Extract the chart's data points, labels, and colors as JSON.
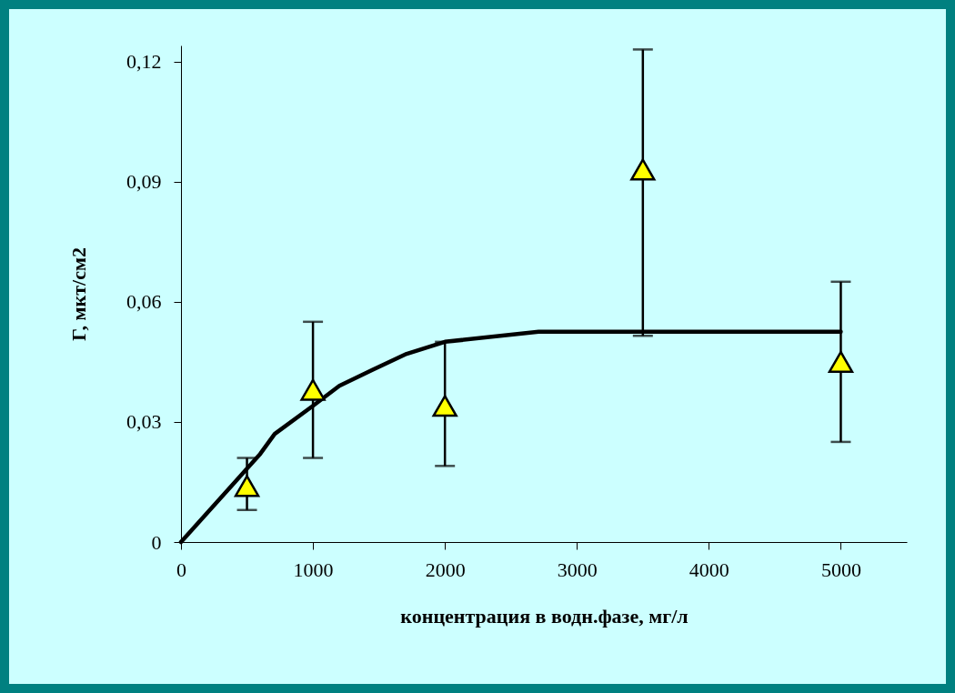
{
  "chart_data": {
    "type": "scatter",
    "xlabel": "концентрация в водн.фазе, мг/л",
    "ylabel": "Г, мкт/см2",
    "xlim": [
      0,
      5500
    ],
    "xticks": [
      0,
      1000,
      2000,
      3000,
      4000,
      5000
    ],
    "ylim": [
      0,
      0.124
    ],
    "yticks": [
      0,
      {
        "value": 0.03,
        "label": "0,03"
      },
      {
        "value": 0.06,
        "label": "0,06"
      },
      {
        "value": 0.09,
        "label": "0,09"
      },
      {
        "value": 0.12,
        "label": "0,12"
      }
    ],
    "grid": false,
    "legend": false,
    "series": [
      {
        "type": "line",
        "color": "#000000",
        "marker": "none",
        "line_style": "solid",
        "x": [
          0,
          600,
          710,
          1000,
          1200,
          1450,
          1710,
          2000,
          2710,
          5000
        ],
        "values": [
          0,
          0.022,
          0.027,
          0.034,
          0.039,
          0.043,
          0.047,
          0.05,
          0.0525,
          0.0525
        ]
      },
      {
        "type": "scatter",
        "color": "#ffff00",
        "marker": "triangle",
        "x": [
          500,
          1000,
          2000,
          3500,
          5000
        ],
        "values": [
          0.014,
          0.038,
          0.034,
          0.093,
          0.045
        ],
        "errors": [
          [
            0.008,
            0.021
          ],
          [
            0.021,
            0.055
          ],
          [
            0.019,
            0.05
          ],
          [
            0.0515,
            0.123
          ],
          [
            0.025,
            0.065
          ]
        ]
      }
    ]
  }
}
